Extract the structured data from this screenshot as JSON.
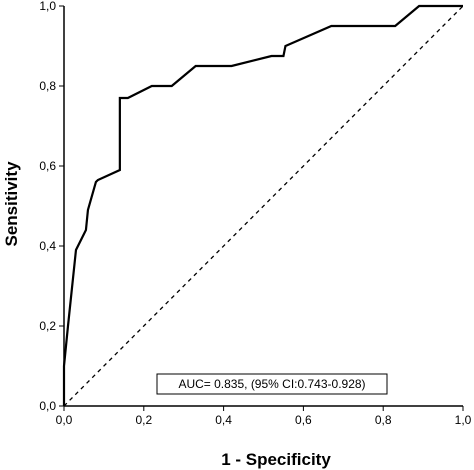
{
  "chart_data": {
    "type": "line",
    "xlabel": "1 - Specificity",
    "ylabel": "Sensitivity",
    "xlim": [
      0,
      1
    ],
    "ylim": [
      0,
      1
    ],
    "x_ticks": [
      "0,0",
      "0,2",
      "0,4",
      "0,6",
      "0,8",
      "1,0"
    ],
    "y_ticks": [
      "0,0",
      "0,2",
      "0,4",
      "0,6",
      "0,8",
      "1,0"
    ],
    "x_tick_values": [
      0,
      0.2,
      0.4,
      0.6,
      0.8,
      1.0
    ],
    "y_tick_values": [
      0,
      0.2,
      0.4,
      0.6,
      0.8,
      1.0
    ],
    "grid": false,
    "legend": "none",
    "annotation": "AUC= 0.835, (95% CI:0.743-0.928)",
    "series": [
      {
        "role": "roc-curve",
        "style": "solid",
        "color": "#000000",
        "x": [
          0,
          0,
          0.01,
          0.03,
          0.05,
          0.055,
          0.06,
          0.08,
          0.085,
          0.14,
          0.14,
          0.16,
          0.22,
          0.27,
          0.33,
          0.42,
          0.52,
          0.55,
          0.555,
          0.67,
          0.83,
          0.89,
          1.0
        ],
        "y": [
          0,
          0.1,
          0.2,
          0.39,
          0.43,
          0.44,
          0.49,
          0.56,
          0.565,
          0.59,
          0.77,
          0.77,
          0.8,
          0.8,
          0.85,
          0.85,
          0.875,
          0.875,
          0.9,
          0.95,
          0.95,
          1.0,
          1.0
        ]
      },
      {
        "role": "reference-line",
        "style": "dashed",
        "color": "#000000",
        "x": [
          0,
          1
        ],
        "y": [
          0,
          1
        ]
      }
    ]
  }
}
